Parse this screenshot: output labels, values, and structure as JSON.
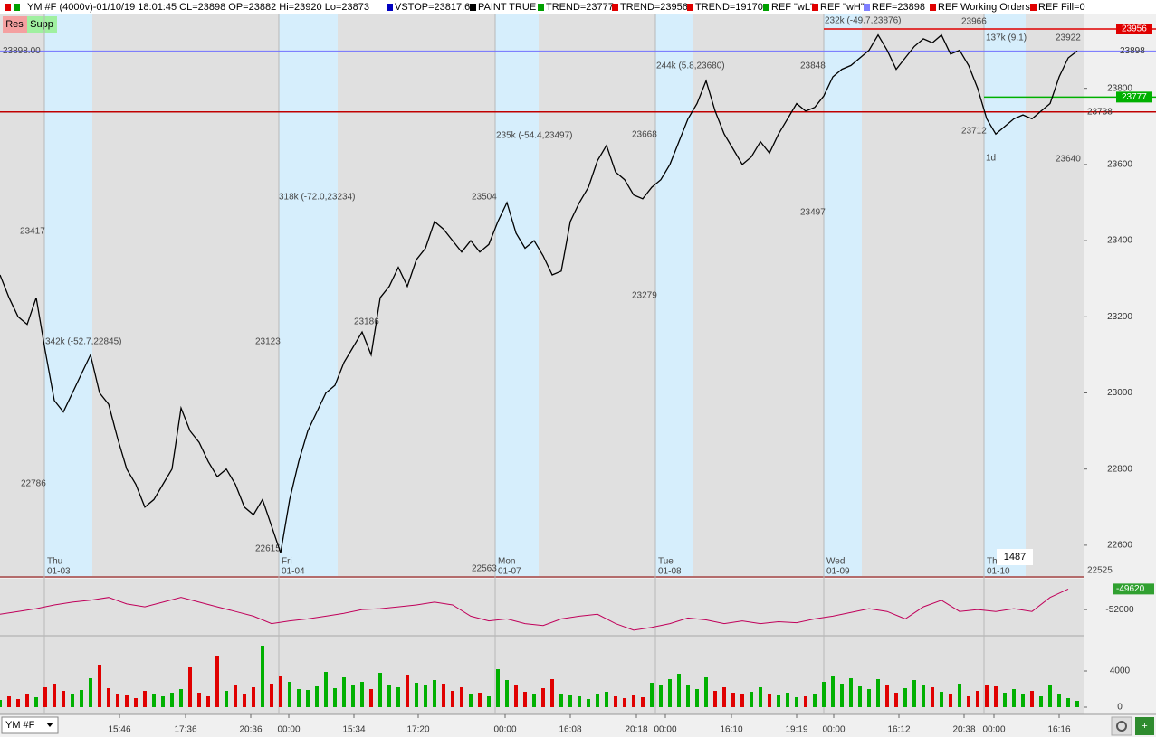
{
  "header": {
    "symbol_info": "YM #F (4000v)-01/10/19 18:01:45 CL=23898 OP=23882 Hi=23920 Lo=23873",
    "items": [
      {
        "label": "VSTOP=23817.6",
        "color": "#0000c0"
      },
      {
        "label": "PAINT TRUE",
        "color": "#000000"
      },
      {
        "label": "TREND=23777",
        "color": "#00a000"
      },
      {
        "label": "TREND=23956",
        "color": "#e00000"
      },
      {
        "label": "TREND=19170",
        "color": "#e00000"
      },
      {
        "label": "REF \"wL\"",
        "color": "#00a000"
      },
      {
        "label": "REF \"wH\"",
        "color": "#e00000"
      },
      {
        "label": "REF=23898",
        "color": "#8080ff"
      },
      {
        "label": "REF Working Orders",
        "color": "#e00000"
      },
      {
        "label": "REF Fill=0",
        "color": "#e00000"
      }
    ]
  },
  "buttons": {
    "res": "Res",
    "supp": "Supp"
  },
  "toolbar": {
    "symbol": "YM #F",
    "add": "+"
  },
  "chart_data": [
    {
      "type": "line",
      "color": "#000000",
      "x": [
        0,
        1,
        2,
        3,
        4,
        5,
        6,
        7,
        8,
        9,
        10,
        11,
        12,
        13,
        14,
        15,
        16,
        17,
        18,
        19,
        20,
        21,
        22,
        23,
        24,
        25,
        26,
        27,
        28,
        29,
        30,
        31,
        32,
        33,
        34,
        35,
        36,
        37,
        38,
        39,
        40,
        41,
        42,
        43,
        44,
        45,
        46,
        47,
        48,
        49,
        50,
        51,
        52,
        53,
        54,
        55,
        56,
        57,
        58,
        59,
        60,
        61,
        62,
        63,
        64,
        65,
        66,
        67,
        68,
        69,
        70,
        71,
        72,
        73,
        74,
        75,
        76,
        77,
        78,
        79,
        80,
        81,
        82,
        83,
        84,
        85,
        86,
        87,
        88,
        89,
        90,
        91,
        92,
        93,
        94,
        95,
        96,
        97,
        98,
        99,
        100,
        101,
        102,
        103,
        104,
        105,
        106,
        107,
        108,
        109,
        110,
        111,
        112,
        113,
        114,
        115,
        116,
        117,
        118,
        119
      ],
      "values": [
        23310,
        23250,
        23200,
        23180,
        23250,
        23110,
        22980,
        22950,
        23000,
        23050,
        23100,
        23000,
        22970,
        22880,
        22800,
        22760,
        22700,
        22720,
        22760,
        22800,
        22960,
        22900,
        22870,
        22820,
        22780,
        22800,
        22760,
        22700,
        22680,
        22720,
        22650,
        22580,
        22720,
        22820,
        22900,
        22950,
        23000,
        23020,
        23080,
        23120,
        23160,
        23100,
        23250,
        23280,
        23330,
        23280,
        23350,
        23380,
        23450,
        23430,
        23400,
        23370,
        23400,
        23370,
        23390,
        23450,
        23500,
        23420,
        23380,
        23400,
        23360,
        23310,
        23320,
        23450,
        23500,
        23540,
        23610,
        23650,
        23580,
        23560,
        23520,
        23510,
        23540,
        23560,
        23600,
        23660,
        23720,
        23760,
        23820,
        23740,
        23680,
        23640,
        23600,
        23620,
        23660,
        23630,
        23680,
        23720,
        23760,
        23740,
        23750,
        23780,
        23830,
        23850,
        23860,
        23880,
        23900,
        23940,
        23900,
        23850,
        23880,
        23910,
        23930,
        23920,
        23940,
        23890,
        23900,
        23860,
        23800,
        23720,
        23680,
        23700,
        23720,
        23730,
        23720,
        23740,
        23760,
        23830,
        23880,
        23898
      ],
      "xlim": [
        0,
        119.7
      ],
      "ylim": [
        22519,
        23994
      ],
      "yticks": [
        22600,
        22800,
        23000,
        23200,
        23400,
        23600,
        23800
      ],
      "reference_lines": [
        {
          "value": 23956,
          "color": "#e00000"
        },
        {
          "value": {
            "value": 23898,
            "label": "23898.00"
          },
          "color": "#7070ff"
        },
        {
          "value": 23777,
          "color": "#00b000"
        },
        {
          "value": 23738,
          "color": "#c00000"
        }
      ],
      "sessions": [
        {
          "day": "Thu",
          "date": "01-03",
          "x": 4.9
        },
        {
          "day": "Fri",
          "date": "01-04",
          "x": 30.8
        },
        {
          "day": "Mon",
          "date": "01-07",
          "x": 54.7
        },
        {
          "day": "Tue",
          "date": "01-08",
          "x": 72.4
        },
        {
          "day": "Wed",
          "date": "01-09",
          "x": 91
        },
        {
          "day": "Thu",
          "date": "01-10",
          "x": 108.7
        }
      ],
      "price_labels": [
        23417,
        22786,
        23123,
        23186,
        22615,
        22563,
        23504,
        23279,
        23668,
        23497,
        23848,
        23966,
        23712,
        23922,
        23640,
        22525
      ],
      "profile_labels": [
        "342k (-52.7,22845)",
        "318k (-72.0,23234)",
        "235k (-54.4,23497)",
        "244k (5.8,23680)",
        "232k (-49.7,23876)",
        "137k (9.1)",
        "1d"
      ],
      "counter": 1487
    },
    {
      "type": "line",
      "color": "#c0005a",
      "x": [
        0,
        2,
        4,
        6,
        8,
        10,
        12,
        14,
        16,
        18,
        20,
        22,
        24,
        26,
        28,
        30,
        32,
        34,
        36,
        38,
        40,
        42,
        44,
        46,
        48,
        50,
        52,
        54,
        56,
        58,
        60,
        62,
        64,
        66,
        68,
        70,
        72,
        74,
        76,
        78,
        80,
        82,
        84,
        86,
        88,
        90,
        92,
        94,
        96,
        98,
        100,
        102,
        104,
        106,
        108,
        110,
        112,
        114,
        116,
        118
      ],
      "values": [
        -52540,
        -52220,
        -51890,
        -51460,
        -51140,
        -50920,
        -50600,
        -51350,
        -51680,
        -51140,
        -50600,
        -51140,
        -51680,
        -52220,
        -52760,
        -53620,
        -53300,
        -53080,
        -52760,
        -52430,
        -52000,
        -51890,
        -51680,
        -51460,
        -51140,
        -51460,
        -52760,
        -53300,
        -53080,
        -53620,
        -53840,
        -53080,
        -52760,
        -52540,
        -53620,
        -54380,
        -54050,
        -53620,
        -52970,
        -53190,
        -53620,
        -53300,
        -53620,
        -53400,
        -53510,
        -53080,
        -52760,
        -52320,
        -51890,
        -52220,
        -53080,
        -51680,
        -50920,
        -52220,
        -52000,
        -52220,
        -51890,
        -52220,
        -50600,
        -49620
      ],
      "xlim": [
        0,
        119.7
      ],
      "ylim": [
        -54916,
        -48430
      ],
      "yticks": [
        -52000
      ]
    },
    {
      "type": "bar",
      "up_color": "#00b000",
      "down_color": "#e00000",
      "x": [
        0,
        1,
        2,
        3,
        4,
        5,
        6,
        7,
        8,
        9,
        10,
        11,
        12,
        13,
        14,
        15,
        16,
        17,
        18,
        19,
        20,
        21,
        22,
        23,
        24,
        25,
        26,
        27,
        28,
        29,
        30,
        31,
        32,
        33,
        34,
        35,
        36,
        37,
        38,
        39,
        40,
        41,
        42,
        43,
        44,
        45,
        46,
        47,
        48,
        49,
        50,
        51,
        52,
        53,
        54,
        55,
        56,
        57,
        58,
        59,
        60,
        61,
        62,
        63,
        64,
        65,
        66,
        67,
        68,
        69,
        70,
        71,
        72,
        73,
        74,
        75,
        76,
        77,
        78,
        79,
        80,
        81,
        82,
        83,
        84,
        85,
        86,
        87,
        88,
        89,
        90,
        91,
        92,
        93,
        94,
        95,
        96,
        97,
        98,
        99,
        100,
        101,
        102,
        103,
        104,
        105,
        106,
        107,
        108,
        109,
        110,
        111,
        112,
        113,
        114,
        115,
        116,
        117,
        118,
        119
      ],
      "values": [
        800,
        1200,
        900,
        1500,
        1100,
        2200,
        2600,
        1800,
        1400,
        1900,
        3200,
        4700,
        2100,
        1500,
        1300,
        1000,
        1800,
        1400,
        1200,
        1600,
        2000,
        4400,
        1600,
        1200,
        5700,
        1800,
        2400,
        1500,
        2200,
        6800,
        2600,
        3500,
        2800,
        2000,
        1900,
        2300,
        3900,
        2100,
        3300,
        2500,
        2800,
        2000,
        3800,
        2500,
        2200,
        3600,
        2700,
        2400,
        3000,
        2600,
        1800,
        2200,
        1500,
        1600,
        1200,
        4200,
        3000,
        2400,
        1700,
        1400,
        2100,
        3100,
        1500,
        1300,
        1200,
        900,
        1500,
        1700,
        1200,
        1000,
        1300,
        1100,
        2700,
        2400,
        3100,
        3700,
        2500,
        2000,
        3300,
        1800,
        2200,
        1600,
        1500,
        1700,
        2200,
        1400,
        1300,
        1600,
        1100,
        1200,
        1500,
        2800,
        3500,
        2600,
        3200,
        2300,
        2000,
        3100,
        2500,
        1600,
        2100,
        3000,
        2400,
        2200,
        1700,
        1500,
        2600,
        1200,
        1800,
        2500,
        2300,
        1600,
        2000,
        1400,
        1800,
        1200,
        2500,
        1500,
        1000,
        700
      ],
      "xlim": [
        0,
        119.7
      ],
      "ylim": [
        -800,
        7800
      ],
      "yticks": [
        0,
        4000
      ],
      "xticks": [
        {
          "value": 13.2,
          "label": "15:46"
        },
        {
          "value": 20.5,
          "label": "17:36"
        },
        {
          "value": 27.7,
          "label": "20:36"
        },
        {
          "value": 31.9,
          "label": "00:00"
        },
        {
          "value": 39.1,
          "label": "15:34"
        },
        {
          "value": 46.2,
          "label": "17:20"
        },
        {
          "value": 55.8,
          "label": "00:00"
        },
        {
          "value": 63,
          "label": "16:08"
        },
        {
          "value": 70.3,
          "label": "20:18"
        },
        {
          "value": 73.5,
          "label": "00:00"
        },
        {
          "value": 80.8,
          "label": "16:10"
        },
        {
          "value": 88,
          "label": "19:19"
        },
        {
          "value": 92.1,
          "label": "00:00"
        },
        {
          "value": 99.3,
          "label": "16:12"
        },
        {
          "value": 106.5,
          "label": "20:38"
        },
        {
          "value": 109.8,
          "label": "00:00"
        },
        {
          "value": 117,
          "label": "16:16"
        }
      ]
    }
  ]
}
